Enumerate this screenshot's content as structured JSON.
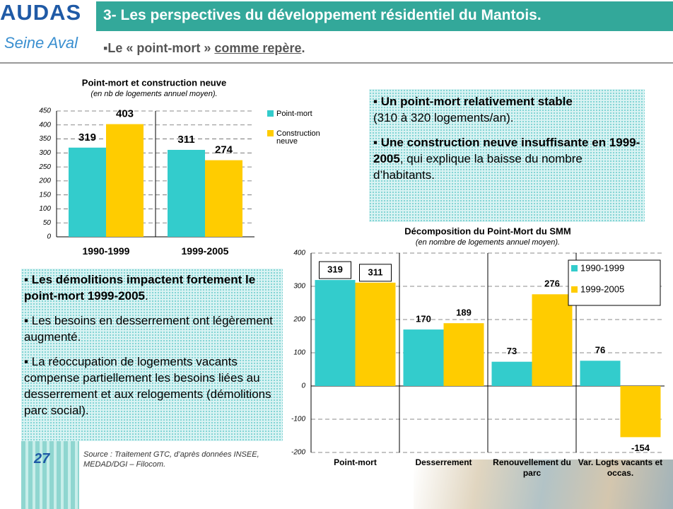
{
  "header": {
    "logo": "AUDAS",
    "title": "3- Les perspectives du développement résidentiel du Mantois.",
    "logo2": "Seine Aval",
    "subtitle_prefix": "▪Le « point-mort » ",
    "subtitle_underlined": "comme repère",
    "subtitle_suffix": "."
  },
  "chart_data": [
    {
      "type": "bar",
      "title": "Point-mort et construction neuve",
      "subtitle": "(en nb de logements annuel moyen).",
      "categories": [
        "1990-1999",
        "1999-2005"
      ],
      "series": [
        {
          "name": "Point-mort",
          "color": "#33cccc",
          "values": [
            319,
            311
          ]
        },
        {
          "name": "Construction neuve",
          "color": "#ffcc00",
          "values": [
            403,
            274
          ]
        }
      ],
      "ylim": [
        0,
        450
      ],
      "yticks": [
        0,
        50,
        100,
        150,
        200,
        250,
        300,
        350,
        400,
        450
      ],
      "grid": true,
      "legend": "right"
    },
    {
      "type": "bar",
      "title": "Décomposition du Point-Mort du SMM",
      "subtitle": "(en nombre de logements annuel moyen).",
      "categories": [
        "Point-mort",
        "Desserrement",
        "Renouvellement du parc",
        "Var. Logts vacants et occas."
      ],
      "series": [
        {
          "name": "1990-1999",
          "color": "#33cccc",
          "values": [
            319,
            170,
            73,
            76
          ]
        },
        {
          "name": "1999-2005",
          "color": "#ffcc00",
          "values": [
            311,
            189,
            276,
            -154
          ]
        }
      ],
      "ylim": [
        -200,
        400
      ],
      "yticks": [
        -200,
        -100,
        0,
        100,
        200,
        300,
        400
      ],
      "grid": true,
      "legend": "top right"
    }
  ],
  "box1": {
    "paragraphs": [
      {
        "bold": "▪ Un point-mort relativement stable",
        "text": "(310 à 320 logements/an)."
      },
      {
        "bold": "▪ Une construction neuve insuffisante en 1999-2005",
        "text": ", qui explique la baisse du nombre d’habitants."
      }
    ]
  },
  "box2": {
    "paragraphs": [
      {
        "bold": "▪ Les démolitions impactent fortement le point-mort 1999-2005",
        "text": "."
      },
      {
        "text": "▪ Les besoins en desserrement ont légèrement augmenté."
      },
      {
        "text": "▪ La réoccupation de logements vacants compense partiellement les besoins liées au desserrement et aux relogements (démolitions parc social)."
      }
    ]
  },
  "source": "Source : Traitement GTC, d’après données INSEE, MEDAD/DGI – Filocom.",
  "page_number": "27"
}
